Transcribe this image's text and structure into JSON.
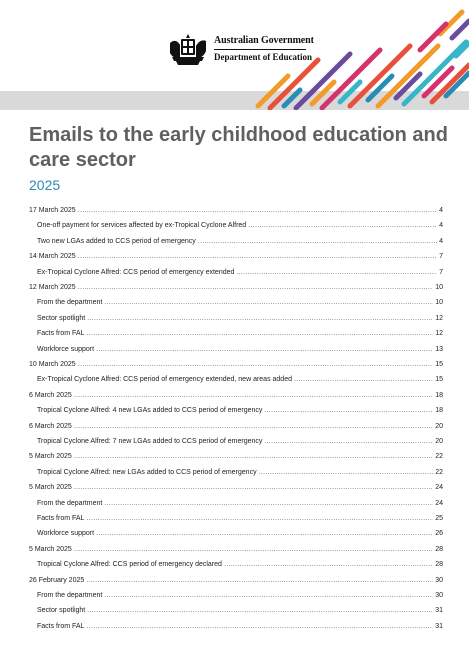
{
  "header": {
    "government": "Australian Government",
    "department": "Department of Education"
  },
  "document": {
    "title": "Emails to the early childhood education and care sector",
    "year": "2025"
  },
  "toc": [
    {
      "label": "17 March 2025",
      "page": "4",
      "level": 1
    },
    {
      "label": "One-off payment for services affected by ex-Tropical Cyclone Alfred",
      "page": "4",
      "level": 2
    },
    {
      "label": "Two new LGAs added to CCS period of emergency",
      "page": "4",
      "level": 2
    },
    {
      "label": "14 March 2025",
      "page": "7",
      "level": 1
    },
    {
      "label": "Ex-Tropical Cyclone Alfred: CCS period of emergency extended",
      "page": "7",
      "level": 2
    },
    {
      "label": "12 March 2025",
      "page": "10",
      "level": 1
    },
    {
      "label": "From the department",
      "page": "10",
      "level": 2
    },
    {
      "label": "Sector spotlight",
      "page": "12",
      "level": 2
    },
    {
      "label": "Facts from FAL",
      "page": "12",
      "level": 2
    },
    {
      "label": "Workforce support",
      "page": "13",
      "level": 2
    },
    {
      "label": "10 March 2025",
      "page": "15",
      "level": 1
    },
    {
      "label": "Ex-Tropical Cyclone Alfred: CCS period of emergency extended, new areas added",
      "page": "15",
      "level": 2
    },
    {
      "label": "6 March 2025",
      "page": "18",
      "level": 1
    },
    {
      "label": "Tropical Cyclone Alfred: 4 new LGAs added to CCS period of emergency",
      "page": "18",
      "level": 2
    },
    {
      "label": "6 March 2025",
      "page": "20",
      "level": 1
    },
    {
      "label": "Tropical Cyclone Alfred: 7 new LGAs added to CCS period of emergency",
      "page": "20",
      "level": 2
    },
    {
      "label": "5 March 2025",
      "page": "22",
      "level": 1
    },
    {
      "label": "Tropical Cyclone Alfred: new LGAs added to CCS period of emergency",
      "page": "22",
      "level": 2
    },
    {
      "label": "5 March 2025",
      "page": "24",
      "level": 1
    },
    {
      "label": "From the department",
      "page": "24",
      "level": 2
    },
    {
      "label": "Facts from FAL",
      "page": "25",
      "level": 2
    },
    {
      "label": "Workforce support",
      "page": "26",
      "level": 2
    },
    {
      "label": "5 March 2025",
      "page": "28",
      "level": 1
    },
    {
      "label": "Tropical Cyclone Alfred: CCS period of emergency declared",
      "page": "28",
      "level": 2
    },
    {
      "label": "26 February 2025",
      "page": "30",
      "level": 1
    },
    {
      "label": "From the department",
      "page": "30",
      "level": 2
    },
    {
      "label": "Sector spotlight",
      "page": "31",
      "level": 2
    },
    {
      "label": "Facts from FAL",
      "page": "31",
      "level": 2
    }
  ],
  "colors": {
    "title": "#5f6062",
    "year": "#2a8cb5",
    "stripes": [
      "#e8503a",
      "#f39a2b",
      "#2a8cb5",
      "#6a4c9c",
      "#d6336c",
      "#38b6c9"
    ]
  },
  "icons": {
    "crest": "commonwealth-coat-of-arms-icon"
  }
}
